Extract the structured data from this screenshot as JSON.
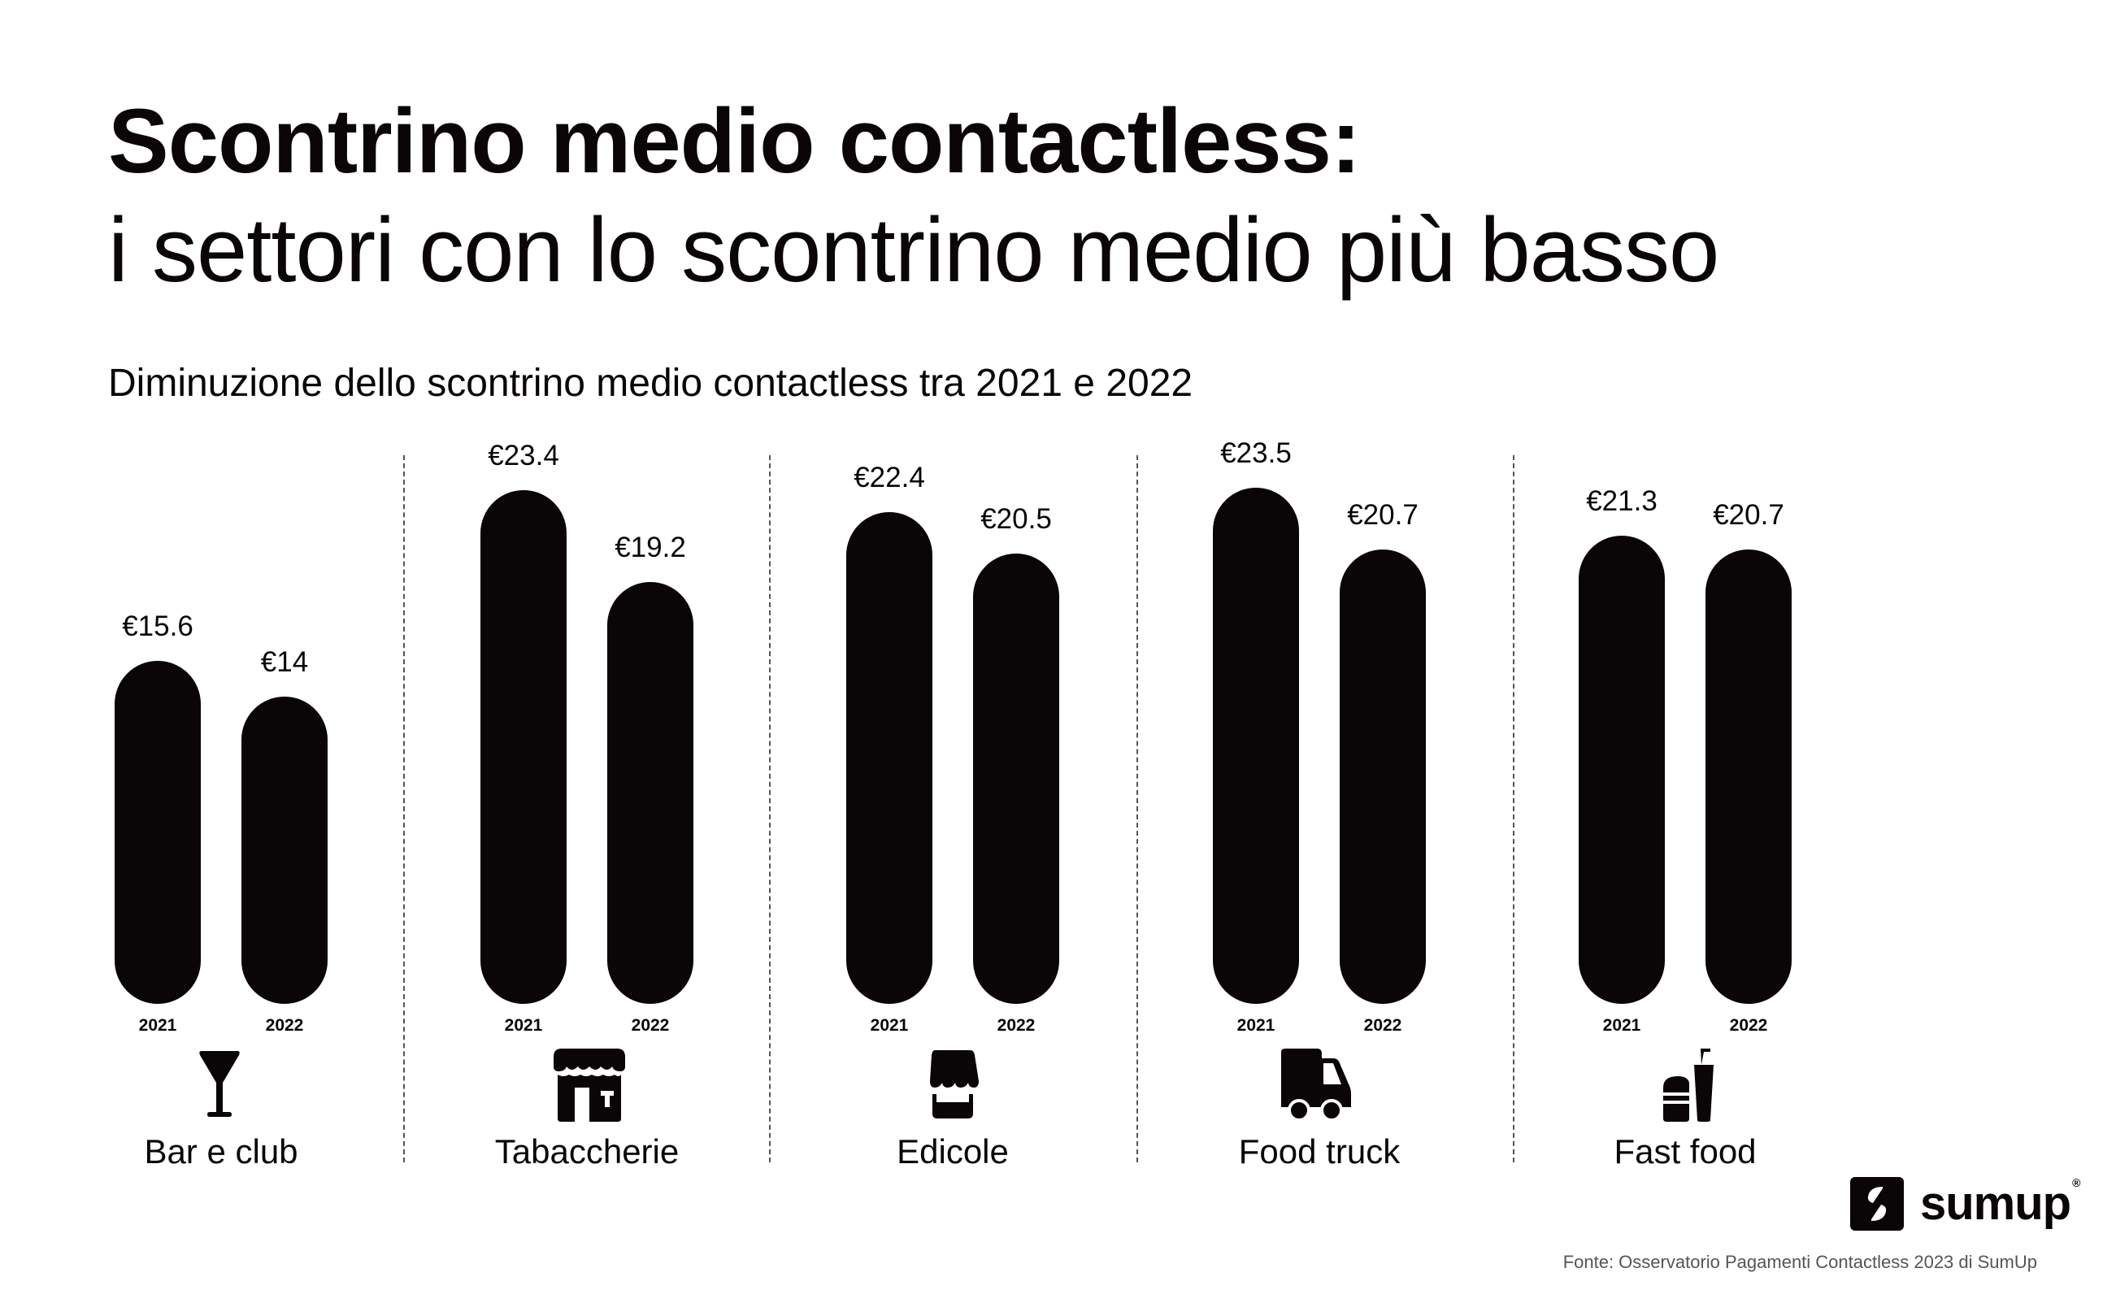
{
  "title": {
    "line1": "Scontrino medio contactless:",
    "line2": "i settori con lo scontrino medio più basso"
  },
  "subtitle": "Diminuzione dello scontrino medio contactless tra 2021 e 2022",
  "chart_data": {
    "type": "bar",
    "title": "Scontrino medio contactless: i settori con lo scontrino medio più basso",
    "subtitle": "Diminuzione dello scontrino medio contactless tra 2021 e 2022",
    "categories": [
      "Bar e club",
      "Tabaccherie",
      "Edicole",
      "Food truck",
      "Fast food"
    ],
    "series": [
      {
        "name": "2021",
        "values": [
          15.6,
          23.4,
          22.4,
          23.5,
          21.3
        ]
      },
      {
        "name": "2022",
        "values": [
          14,
          19.2,
          20.5,
          20.7,
          20.7
        ]
      }
    ],
    "value_labels": {
      "2021": [
        "€15.6",
        "€23.4",
        "€22.4",
        "€23.5",
        "€21.3"
      ],
      "2022": [
        "€14",
        "€19.2",
        "€20.5",
        "€20.7",
        "€20.7"
      ]
    },
    "xlabel": "",
    "ylabel": "",
    "unit": "€",
    "grid": false,
    "legend": "none (year labels under each bar)"
  },
  "groups": [
    {
      "label": "Bar e club",
      "icon": "cocktail-glass-icon",
      "bars": [
        {
          "year": "2021",
          "value": "€15.6"
        },
        {
          "year": "2022",
          "value": "€14"
        }
      ]
    },
    {
      "label": "Tabaccherie",
      "icon": "tobacco-shop-icon",
      "bars": [
        {
          "year": "2021",
          "value": "€23.4"
        },
        {
          "year": "2022",
          "value": "€19.2"
        }
      ]
    },
    {
      "label": "Edicole",
      "icon": "newsstand-icon",
      "bars": [
        {
          "year": "2021",
          "value": "€22.4"
        },
        {
          "year": "2022",
          "value": "€20.5"
        }
      ]
    },
    {
      "label": "Food truck",
      "icon": "truck-icon",
      "bars": [
        {
          "year": "2021",
          "value": "€23.5"
        },
        {
          "year": "2022",
          "value": "€20.7"
        }
      ]
    },
    {
      "label": "Fast food",
      "icon": "burger-drink-icon",
      "bars": [
        {
          "year": "2021",
          "value": "€21.3"
        },
        {
          "year": "2022",
          "value": "€20.7"
        }
      ]
    }
  ],
  "logo": {
    "text": "sumup",
    "reg": "®"
  },
  "source": "Fonte: Osservatorio Pagamenti Contactless 2023 di SumUp",
  "colors": {
    "bar": "#0a0506",
    "text": "#0a0506",
    "source": "#555555",
    "background": "#ffffff"
  }
}
